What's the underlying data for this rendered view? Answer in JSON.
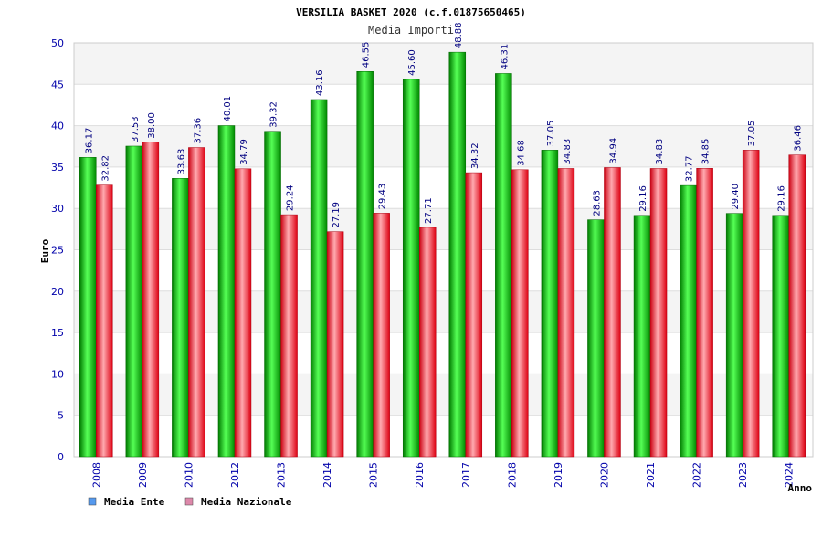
{
  "chart_data": {
    "type": "bar",
    "title": "VERSILIA BASKET 2020 (c.f.01875650465)",
    "subtitle": "Media Importi",
    "xlabel": "Anno",
    "ylabel": "Euro",
    "ylim": [
      0,
      50
    ],
    "yticks": [
      "0",
      "5",
      "10",
      "15",
      "20",
      "25",
      "30",
      "35",
      "40",
      "45",
      "50"
    ],
    "grid": true,
    "legend_position": "bottom-left",
    "categories": [
      "2008",
      "2009",
      "2010",
      "2012",
      "2013",
      "2014",
      "2015",
      "2016",
      "2017",
      "2018",
      "2019",
      "2020",
      "2021",
      "2022",
      "2023",
      "2024"
    ],
    "series": [
      {
        "name": "Media Ente",
        "color": "#00aa00",
        "legend_color": "#5599ee",
        "values": [
          36.17,
          37.53,
          33.63,
          40.01,
          39.32,
          43.16,
          46.55,
          45.6,
          48.88,
          46.31,
          37.05,
          28.63,
          29.16,
          32.77,
          29.4,
          29.16
        ],
        "labels": [
          "36.17",
          "37.53",
          "33.63",
          "40.01",
          "39.32",
          "43.16",
          "46.55",
          "45.60",
          "48.88",
          "46.31",
          "37.05",
          "28.63",
          "29.16",
          "32.77",
          "29.40",
          "29.16"
        ]
      },
      {
        "name": "Media Nazionale",
        "color": "#ee1122",
        "legend_color": "#dd88aa",
        "values": [
          32.82,
          38.0,
          37.36,
          34.79,
          29.24,
          27.19,
          29.43,
          27.71,
          34.32,
          34.68,
          34.83,
          34.94,
          34.83,
          34.85,
          37.05,
          36.46
        ],
        "labels": [
          "32.82",
          "38.00",
          "37.36",
          "34.79",
          "29.24",
          "27.19",
          "29.43",
          "27.71",
          "34.32",
          "34.68",
          "34.83",
          "34.94",
          "34.83",
          "34.85",
          "37.05",
          "36.46"
        ]
      }
    ]
  }
}
